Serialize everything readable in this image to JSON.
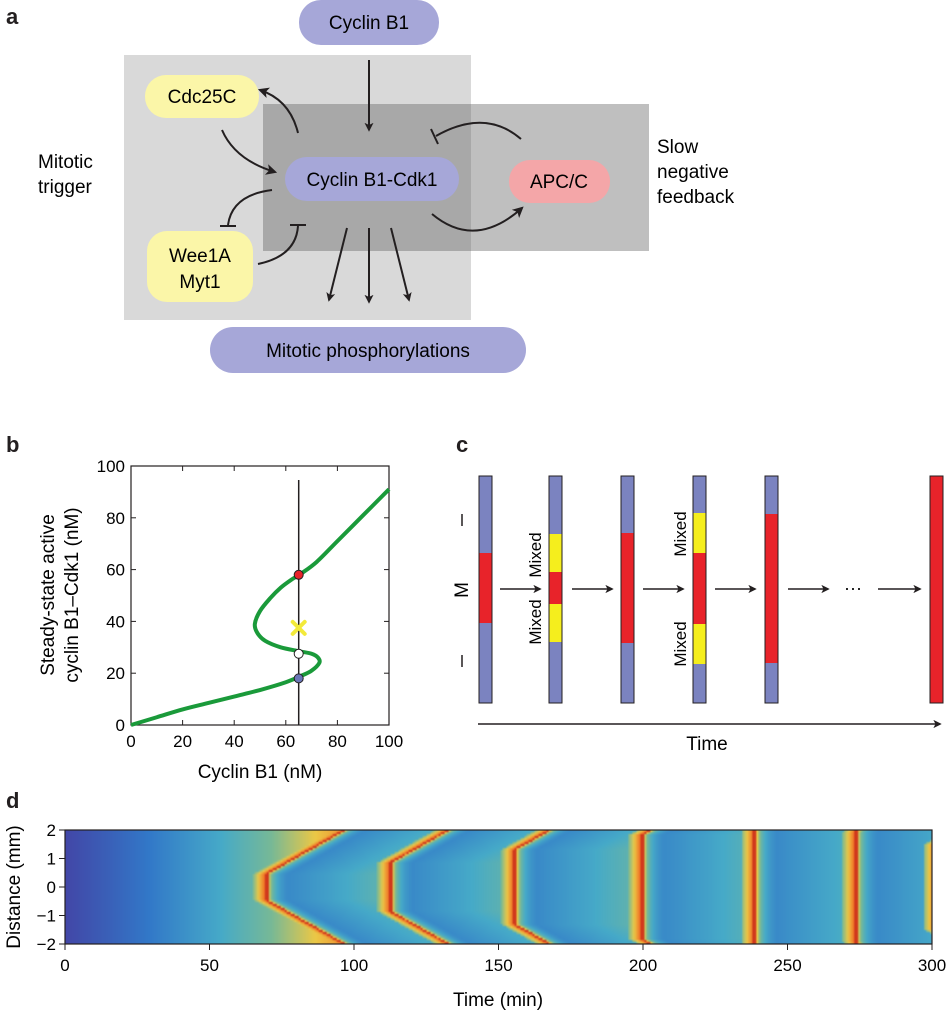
{
  "panel_a": {
    "label": "a",
    "nodes": {
      "cyclin_b1": "Cyclin B1",
      "cdc25c": "Cdc25C",
      "cyclin_b1_cdk1": "Cyclin B1-Cdk1",
      "apc_c": "APC/C",
      "wee1a": "Wee1A",
      "myt1": "Myt1",
      "mitotic_phosphorylations": "Mitotic phosphorylations"
    },
    "regions": {
      "trigger_line1": "Mitotic",
      "trigger_line2": "trigger",
      "feedback_line1": "Slow",
      "feedback_line2": "negative",
      "feedback_line3": "feedback"
    },
    "colors": {
      "purple": "#a6a7d8",
      "yellow": "#fbf6a8",
      "pink": "#f4a6a8"
    }
  },
  "panel_b": {
    "label": "b",
    "chart_data": {
      "type": "line",
      "xlabel": "Cyclin B1 (nM)",
      "ylabel_line1": "Steady-state active",
      "ylabel_line2": "cyclin B1–Cdk1 (nM)",
      "xlim": [
        0,
        100
      ],
      "ylim": [
        0,
        100
      ],
      "xticks": [
        "0",
        "20",
        "40",
        "60",
        "80",
        "100"
      ],
      "yticks": [
        "0",
        "20",
        "40",
        "60",
        "80",
        "100"
      ],
      "curve": [
        [
          0,
          0
        ],
        [
          10,
          3
        ],
        [
          20,
          6
        ],
        [
          30,
          8.5
        ],
        [
          40,
          11
        ],
        [
          50,
          13.5
        ],
        [
          60,
          16.5
        ],
        [
          66,
          19
        ],
        [
          70,
          21
        ],
        [
          73,
          24
        ],
        [
          72.5,
          26
        ],
        [
          70,
          27.5
        ],
        [
          65,
          28.5
        ],
        [
          58,
          30
        ],
        [
          52,
          32.5
        ],
        [
          49,
          35.5
        ],
        [
          48,
          39
        ],
        [
          50,
          44
        ],
        [
          54,
          49
        ],
        [
          58,
          53
        ],
        [
          62,
          56
        ],
        [
          66,
          58.5
        ],
        [
          72,
          63
        ],
        [
          80,
          71
        ],
        [
          90,
          81
        ],
        [
          100,
          91
        ]
      ],
      "curve_color": "#1a9a3a",
      "vertical_line_x": 65,
      "points": [
        {
          "x": 65,
          "y": 58,
          "color": "#e8232a"
        },
        {
          "x": 65,
          "y": 27.5,
          "color": "#ffffff"
        },
        {
          "x": 65,
          "y": 18,
          "color": "#6a76b8"
        }
      ],
      "cross": {
        "x": 65,
        "y": 37.5,
        "color": "#f3ea3a"
      }
    }
  },
  "panel_c": {
    "label": "c",
    "m_label": "M",
    "mixed_label": "Mixed",
    "ellipsis": "···",
    "time_label": "Time",
    "colors": {
      "blue": "#7b83c0",
      "red": "#e8232a",
      "yellow": "#f5ee1d"
    }
  },
  "panel_d": {
    "label": "d",
    "chart_data": {
      "type": "heatmap",
      "xlabel": "Time (min)",
      "ylabel": "Distance (mm)",
      "xlim": [
        0,
        300
      ],
      "ylim": [
        -2,
        2
      ],
      "xticks": [
        "0",
        "50",
        "100",
        "150",
        "200",
        "250",
        "300"
      ],
      "yticks": [
        "2",
        "1",
        "0",
        "−1",
        "−2"
      ],
      "waves": [
        {
          "start": 61,
          "edge": 69
        },
        {
          "start": 97,
          "edge": 112
        },
        {
          "start": 132,
          "edge": 155
        },
        {
          "start": 167,
          "edge": 199
        },
        {
          "start": 203,
          "edge": 238
        },
        {
          "start": 239,
          "edge": 273
        },
        {
          "start": 275,
          "edge": 301
        }
      ],
      "front_speed_min_per_mm": 17.5
    }
  }
}
